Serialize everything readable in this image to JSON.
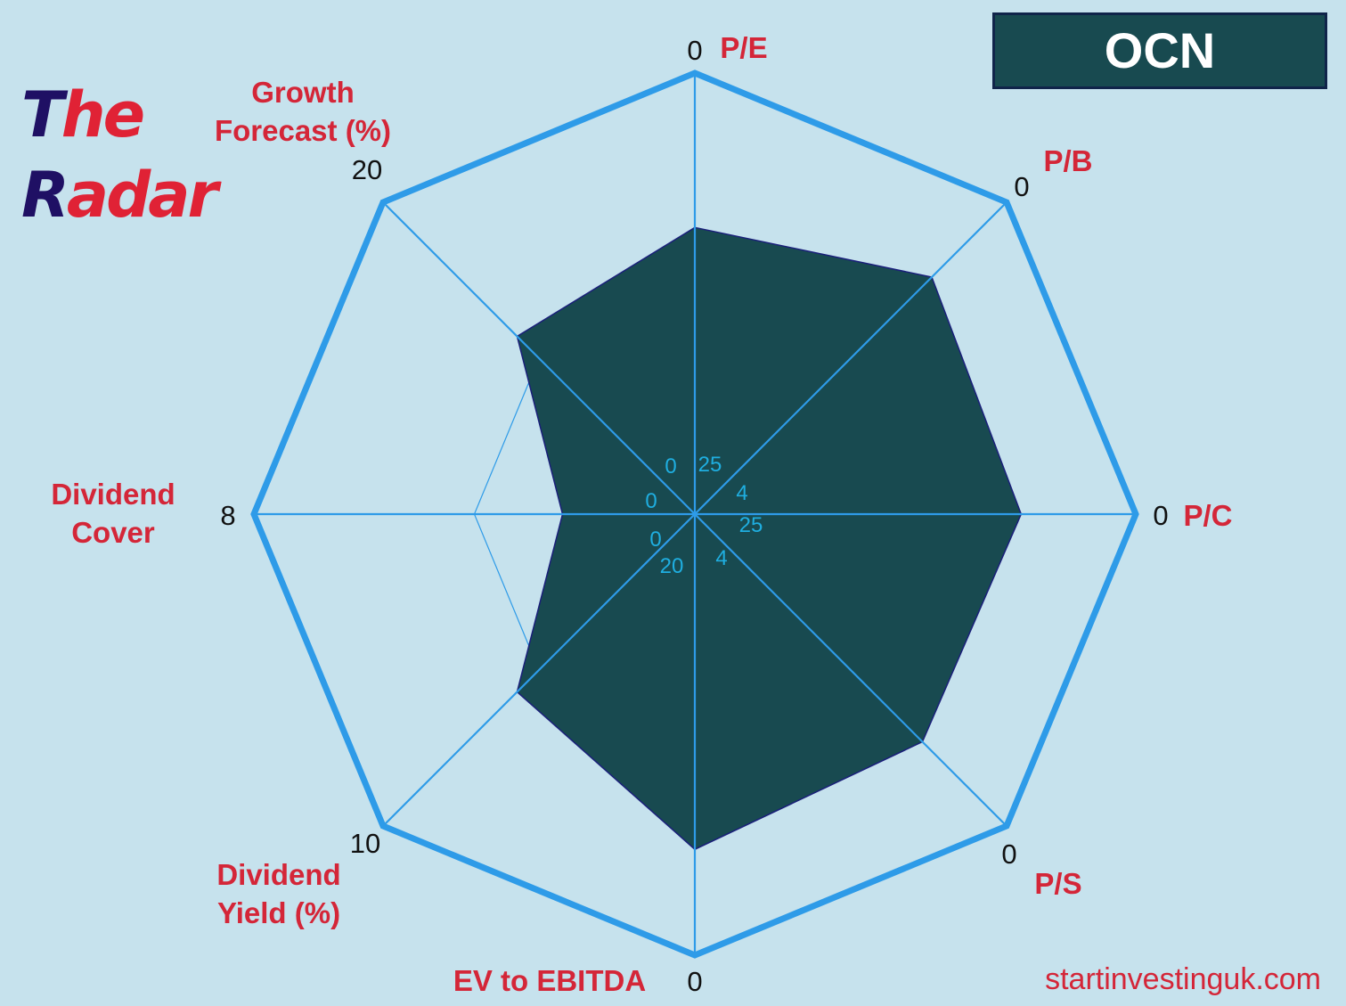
{
  "logo": {
    "line1_cap": "T",
    "line1_rest": "he",
    "line2_cap": "R",
    "line2_rest": "adar"
  },
  "ticker": "OCN",
  "site": "startinvestinguk.com",
  "colors": {
    "background": "#c6e2ed",
    "axis_blue": "#2e9be8",
    "fill": "#184a50",
    "outline": "#1a1f7a",
    "label_red": "#d42638",
    "inner_tick": "#1faee0",
    "logo_dark": "#1f1064",
    "logo_red": "#e02235"
  },
  "chart_data": {
    "type": "radar",
    "title": "OCN",
    "axes": [
      {
        "name": "P/E",
        "label_lines": [
          "P/E"
        ],
        "outer_tick": "0",
        "inner_tick": "25",
        "value": 0.65
      },
      {
        "name": "P/B",
        "label_lines": [
          "P/B"
        ],
        "outer_tick": "0",
        "inner_tick": "4",
        "value": 0.76
      },
      {
        "name": "P/C",
        "label_lines": [
          "P/C"
        ],
        "outer_tick": "0",
        "inner_tick": "25",
        "value": 0.74
      },
      {
        "name": "P/S",
        "label_lines": [
          "P/S"
        ],
        "outer_tick": "0",
        "inner_tick": "4",
        "value": 0.73
      },
      {
        "name": "EV to EBITDA",
        "label_lines": [
          "EV to EBITDA"
        ],
        "outer_tick": "0",
        "inner_tick": "20",
        "value": 0.76
      },
      {
        "name": "Dividend Yield (%)",
        "label_lines": [
          "Dividend",
          "Yield (%)"
        ],
        "outer_tick": "10",
        "inner_tick": "0",
        "value": 0.57
      },
      {
        "name": "Dividend Cover",
        "label_lines": [
          "Dividend",
          "Cover"
        ],
        "outer_tick": "8",
        "inner_tick": "0",
        "value": 0.3
      },
      {
        "name": "Growth Forecast (%)",
        "label_lines": [
          "Growth",
          "Forecast (%)"
        ],
        "outer_tick": "20",
        "inner_tick": "0",
        "value": 0.57
      }
    ],
    "range": [
      0,
      1
    ],
    "grid_levels": [
      0.5,
      1.0
    ],
    "legend": "none"
  }
}
